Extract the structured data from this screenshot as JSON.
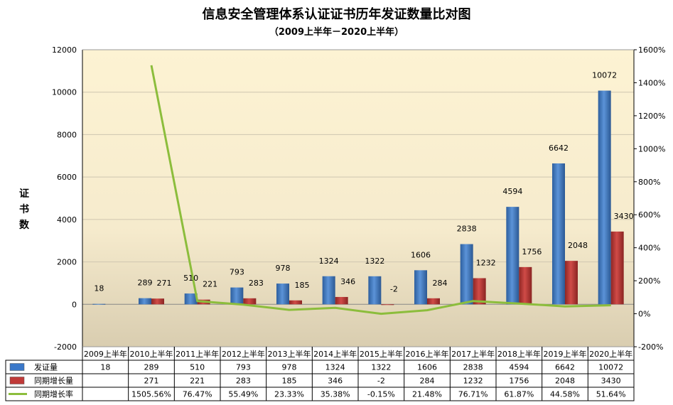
{
  "chart_data": {
    "type": "bar",
    "title": "信息安全管理体系认证证书历年发证数量比对图",
    "subtitle": "（2009上半年－2020上半年）",
    "ylabel": "证书数",
    "categories": [
      "2009上半年",
      "2010上半年",
      "2011上半年",
      "2012上半年",
      "2013上半年",
      "2014上半年",
      "2015上半年",
      "2016上半年",
      "2017上半年",
      "2018上半年",
      "2019上半年",
      "2020上半年"
    ],
    "ylim": [
      -2000,
      12000
    ],
    "y_ticks": [
      "12000",
      "10000",
      "8000",
      "6000",
      "4000",
      "2000",
      "0",
      "-2000"
    ],
    "y2lim": [
      -200,
      1600
    ],
    "y2_ticks": [
      "1600%",
      "1400%",
      "1200%",
      "1000%",
      "800%",
      "600%",
      "400%",
      "200%",
      "0%",
      "-200%"
    ],
    "series": [
      {
        "name": "发证量",
        "kind": "bar",
        "color": "#3a78c9",
        "values": [
          18,
          289,
          510,
          793,
          978,
          1324,
          1322,
          1606,
          2838,
          4594,
          6642,
          10072
        ],
        "labels": [
          "18",
          "289",
          "510",
          "793",
          "978",
          "1324",
          "1322",
          "1606",
          "2838",
          "4594",
          "6642",
          "10072"
        ]
      },
      {
        "name": "同期增长量",
        "kind": "bar",
        "color": "#c03a38",
        "values": [
          null,
          271,
          221,
          283,
          185,
          346,
          -2,
          284,
          1232,
          1756,
          2048,
          3430
        ],
        "labels": [
          "",
          "271",
          "221",
          "283",
          "185",
          "346",
          "-2",
          "284",
          "1232",
          "1756",
          "2048",
          "3430"
        ]
      },
      {
        "name": "同期增长率",
        "kind": "line",
        "axis": "right",
        "color": "#8cbd3c",
        "values": [
          null,
          1505.56,
          76.47,
          55.49,
          23.33,
          35.38,
          -0.15,
          21.48,
          76.71,
          61.87,
          44.58,
          51.64
        ],
        "labels": [
          "",
          "1505.56%",
          "76.47%",
          "55.49%",
          "23.33%",
          "35.38%",
          "-0.15%",
          "21.48%",
          "76.71%",
          "61.87%",
          "44.58%",
          "51.64%"
        ]
      }
    ]
  }
}
